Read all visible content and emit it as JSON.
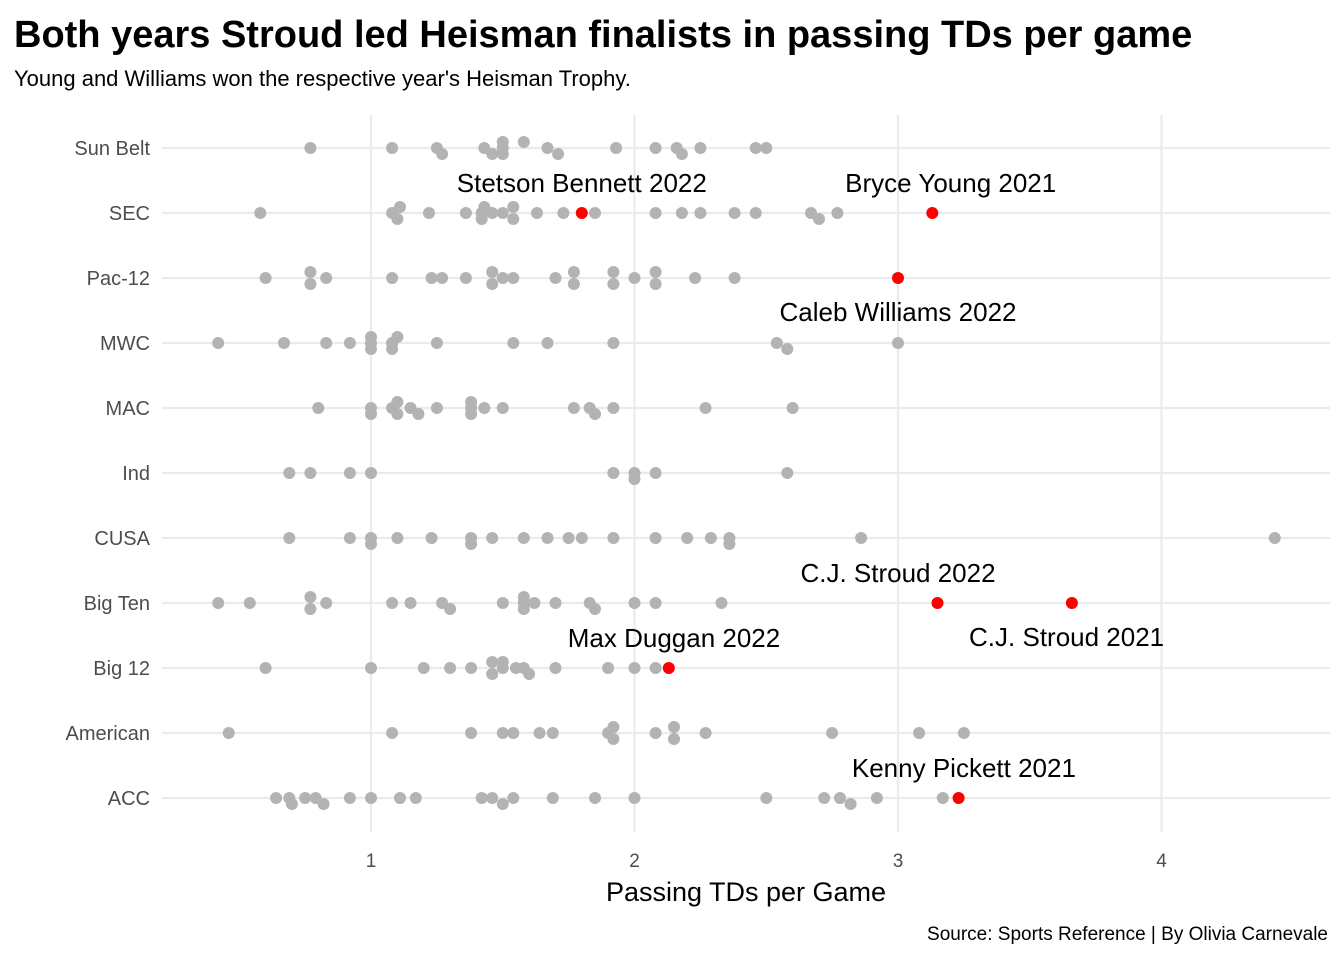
{
  "chart_data": {
    "type": "scatter",
    "title": "Both years Stroud led Heisman finalists in passing TDs per game",
    "subtitle": "Young and Williams won the respective year's Heisman Trophy.",
    "xlabel": "Passing TDs per Game",
    "ylabel": "",
    "caption": "Source: Sports Reference | By Olivia Carnevale",
    "xlim": [
      0.2,
      4.65
    ],
    "xticks": [
      1,
      2,
      3,
      4
    ],
    "grid": true,
    "colors": {
      "other": "#b3b3b3",
      "highlight": "#ff0000",
      "grid": "#ebebeb"
    },
    "categories": [
      "ACC",
      "American",
      "Big 12",
      "Big Ten",
      "CUSA",
      "Ind",
      "MAC",
      "MWC",
      "Pac-12",
      "SEC",
      "Sun Belt"
    ],
    "points": {
      "Sun Belt": [
        [
          0.77,
          0
        ],
        [
          1.08,
          0
        ],
        [
          1.25,
          0
        ],
        [
          1.27,
          1
        ],
        [
          1.43,
          0
        ],
        [
          1.46,
          1
        ],
        [
          1.5,
          1
        ],
        [
          1.5,
          0
        ],
        [
          1.5,
          -1
        ],
        [
          1.58,
          -1
        ],
        [
          1.67,
          0
        ],
        [
          1.71,
          1
        ],
        [
          1.93,
          0
        ],
        [
          2.08,
          0
        ],
        [
          2.16,
          0
        ],
        [
          2.18,
          1
        ],
        [
          2.25,
          0
        ],
        [
          2.46,
          0
        ],
        [
          2.5,
          0
        ]
      ],
      "SEC": [
        [
          0.58,
          0
        ],
        [
          1.08,
          0
        ],
        [
          1.1,
          1
        ],
        [
          1.11,
          -1
        ],
        [
          1.22,
          0
        ],
        [
          1.36,
          0
        ],
        [
          1.42,
          1
        ],
        [
          1.42,
          0
        ],
        [
          1.43,
          -1
        ],
        [
          1.46,
          0
        ],
        [
          1.5,
          0
        ],
        [
          1.54,
          1
        ],
        [
          1.54,
          -1
        ],
        [
          1.63,
          0
        ],
        [
          1.73,
          0
        ],
        [
          1.85,
          0
        ],
        [
          2.08,
          0
        ],
        [
          2.18,
          0
        ],
        [
          2.25,
          0
        ],
        [
          2.38,
          0
        ],
        [
          2.46,
          0
        ],
        [
          2.67,
          0
        ],
        [
          2.7,
          1
        ],
        [
          2.77,
          0
        ]
      ],
      "Pac-12": [
        [
          0.6,
          0
        ],
        [
          0.77,
          1
        ],
        [
          0.77,
          -1
        ],
        [
          0.83,
          0
        ],
        [
          1.08,
          0
        ],
        [
          1.23,
          0
        ],
        [
          1.27,
          0
        ],
        [
          1.36,
          0
        ],
        [
          1.46,
          1
        ],
        [
          1.46,
          -1
        ],
        [
          1.5,
          0
        ],
        [
          1.54,
          0
        ],
        [
          1.7,
          0
        ],
        [
          1.77,
          1
        ],
        [
          1.77,
          -1
        ],
        [
          1.92,
          1
        ],
        [
          1.92,
          -1
        ],
        [
          2.0,
          0
        ],
        [
          2.08,
          1
        ],
        [
          2.08,
          -1
        ],
        [
          2.23,
          0
        ],
        [
          2.38,
          0
        ]
      ],
      "MWC": [
        [
          0.42,
          0
        ],
        [
          0.67,
          0
        ],
        [
          0.83,
          0
        ],
        [
          0.92,
          0
        ],
        [
          1.0,
          1
        ],
        [
          1.0,
          0
        ],
        [
          1.0,
          -1
        ],
        [
          1.08,
          1
        ],
        [
          1.08,
          0
        ],
        [
          1.1,
          -1
        ],
        [
          1.25,
          0
        ],
        [
          1.54,
          0
        ],
        [
          1.67,
          0
        ],
        [
          1.92,
          0
        ],
        [
          2.54,
          0
        ],
        [
          2.58,
          1
        ],
        [
          3.0,
          0
        ]
      ],
      "MAC": [
        [
          0.8,
          0
        ],
        [
          1.0,
          1
        ],
        [
          1.0,
          0
        ],
        [
          1.08,
          0
        ],
        [
          1.1,
          1
        ],
        [
          1.1,
          -1
        ],
        [
          1.15,
          0
        ],
        [
          1.18,
          1
        ],
        [
          1.25,
          0
        ],
        [
          1.38,
          1
        ],
        [
          1.38,
          0
        ],
        [
          1.38,
          -1
        ],
        [
          1.43,
          0
        ],
        [
          1.5,
          0
        ],
        [
          1.77,
          0
        ],
        [
          1.83,
          0
        ],
        [
          1.85,
          1
        ],
        [
          1.92,
          0
        ],
        [
          2.27,
          0
        ],
        [
          2.6,
          0
        ]
      ],
      "Ind": [
        [
          0.69,
          0
        ],
        [
          0.77,
          0
        ],
        [
          0.92,
          0
        ],
        [
          1.0,
          0
        ],
        [
          1.92,
          0
        ],
        [
          2.0,
          1
        ],
        [
          2.0,
          0
        ],
        [
          2.08,
          0
        ],
        [
          2.58,
          0
        ]
      ],
      "CUSA": [
        [
          0.69,
          0
        ],
        [
          0.92,
          0
        ],
        [
          1.0,
          1
        ],
        [
          1.0,
          0
        ],
        [
          1.1,
          0
        ],
        [
          1.23,
          0
        ],
        [
          1.38,
          1
        ],
        [
          1.38,
          0
        ],
        [
          1.46,
          0
        ],
        [
          1.58,
          0
        ],
        [
          1.67,
          0
        ],
        [
          1.75,
          0
        ],
        [
          1.8,
          0
        ],
        [
          1.92,
          0
        ],
        [
          2.08,
          0
        ],
        [
          2.2,
          0
        ],
        [
          2.29,
          0
        ],
        [
          2.36,
          1
        ],
        [
          2.36,
          0
        ],
        [
          2.86,
          0
        ],
        [
          4.43,
          0
        ]
      ],
      "Big Ten": [
        [
          0.42,
          0
        ],
        [
          0.54,
          0
        ],
        [
          0.77,
          1
        ],
        [
          0.77,
          -1
        ],
        [
          0.83,
          0
        ],
        [
          1.08,
          0
        ],
        [
          1.15,
          0
        ],
        [
          1.27,
          0
        ],
        [
          1.3,
          1
        ],
        [
          1.5,
          0
        ],
        [
          1.58,
          1
        ],
        [
          1.58,
          0
        ],
        [
          1.58,
          -1
        ],
        [
          1.62,
          0
        ],
        [
          1.7,
          0
        ],
        [
          1.83,
          0
        ],
        [
          1.85,
          1
        ],
        [
          2.0,
          0
        ],
        [
          2.08,
          0
        ],
        [
          2.33,
          0
        ]
      ],
      "Big 12": [
        [
          0.6,
          0
        ],
        [
          1.0,
          0
        ],
        [
          1.2,
          0
        ],
        [
          1.3,
          0
        ],
        [
          1.38,
          0
        ],
        [
          1.46,
          1
        ],
        [
          1.46,
          -1
        ],
        [
          1.5,
          0
        ],
        [
          1.5,
          -1
        ],
        [
          1.55,
          0
        ],
        [
          1.58,
          0
        ],
        [
          1.6,
          1
        ],
        [
          1.7,
          0
        ],
        [
          1.9,
          0
        ],
        [
          2.0,
          0
        ],
        [
          2.08,
          0
        ]
      ],
      "American": [
        [
          0.46,
          0
        ],
        [
          1.08,
          0
        ],
        [
          1.38,
          0
        ],
        [
          1.5,
          0
        ],
        [
          1.54,
          0
        ],
        [
          1.64,
          0
        ],
        [
          1.69,
          0
        ],
        [
          1.9,
          0
        ],
        [
          1.92,
          1
        ],
        [
          1.92,
          -1
        ],
        [
          2.08,
          0
        ],
        [
          2.15,
          1
        ],
        [
          2.15,
          -1
        ],
        [
          2.27,
          0
        ],
        [
          2.75,
          0
        ],
        [
          3.08,
          0
        ],
        [
          3.25,
          0
        ]
      ],
      "ACC": [
        [
          0.64,
          0
        ],
        [
          0.69,
          0
        ],
        [
          0.7,
          1
        ],
        [
          0.75,
          0
        ],
        [
          0.79,
          0
        ],
        [
          0.82,
          1
        ],
        [
          0.92,
          0
        ],
        [
          1.0,
          0
        ],
        [
          1.11,
          0
        ],
        [
          1.17,
          0
        ],
        [
          1.42,
          0
        ],
        [
          1.46,
          0
        ],
        [
          1.5,
          1
        ],
        [
          1.54,
          0
        ],
        [
          1.69,
          0
        ],
        [
          1.85,
          0
        ],
        [
          2.0,
          0
        ],
        [
          2.5,
          0
        ],
        [
          2.72,
          0
        ],
        [
          2.78,
          0
        ],
        [
          2.82,
          1
        ],
        [
          2.92,
          0
        ],
        [
          3.17,
          0
        ]
      ]
    },
    "highlights": [
      {
        "name": "Bryce Young 2021",
        "category": "SEC",
        "x": 3.13,
        "label_anchor": "middle",
        "label_dx": 0.07,
        "label_pos": "above"
      },
      {
        "name": "Stetson Bennett 2022",
        "category": "SEC",
        "x": 1.8,
        "label_anchor": "middle",
        "label_dx": 0.0,
        "label_pos": "above"
      },
      {
        "name": "Caleb Williams 2022",
        "category": "Pac-12",
        "x": 3.0,
        "label_anchor": "middle",
        "label_dx": 0.0,
        "label_pos": "below"
      },
      {
        "name": "C.J. Stroud 2022",
        "category": "Big Ten",
        "x": 3.15,
        "label_anchor": "middle",
        "label_dx": -0.15,
        "label_pos": "above"
      },
      {
        "name": "C.J. Stroud 2021",
        "category": "Big Ten",
        "x": 3.66,
        "label_anchor": "middle",
        "label_dx": -0.02,
        "label_pos": "below"
      },
      {
        "name": "Max Duggan 2022",
        "category": "Big 12",
        "x": 2.13,
        "label_anchor": "middle",
        "label_dx": 0.02,
        "label_pos": "above"
      },
      {
        "name": "Kenny Pickett 2021",
        "category": "ACC",
        "x": 3.23,
        "label_anchor": "middle",
        "label_dx": 0.02,
        "label_pos": "above"
      }
    ]
  }
}
